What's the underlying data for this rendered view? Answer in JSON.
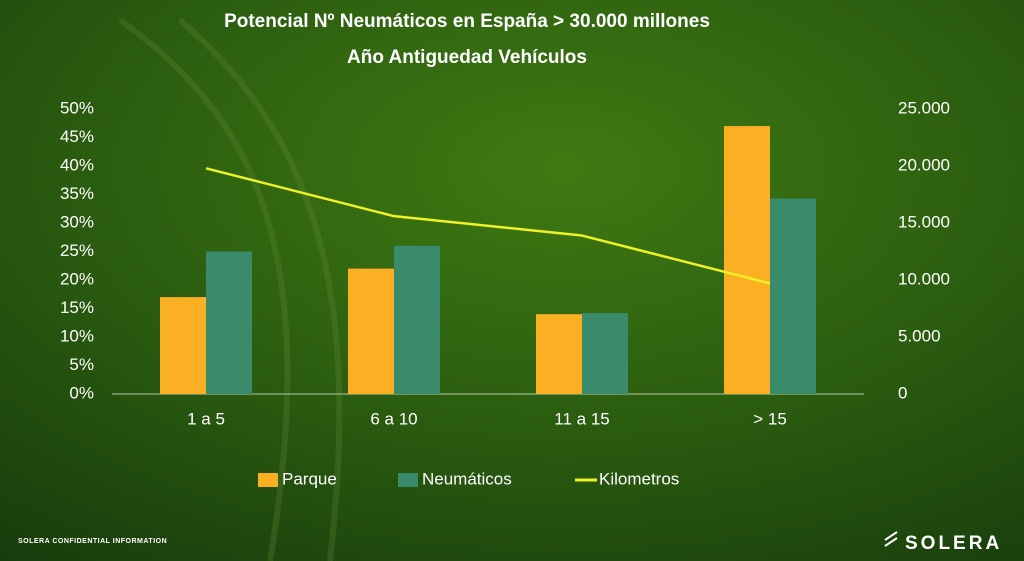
{
  "chart_data": {
    "type": "bar",
    "title": "Potencial   Nº Neumáticos en España  > 30.000 millones",
    "subtitle": "Año Antiguedad Vehículos",
    "categories": [
      "1 a 5",
      "6 a 10",
      "11 a 15",
      "> 15"
    ],
    "series": [
      {
        "name": "Parque",
        "color": "#fbb023",
        "values": [
          17,
          22,
          14,
          47
        ]
      },
      {
        "name": "Neumáticos",
        "color": "#3a8b6b",
        "values": [
          25,
          26,
          14.2,
          34.3
        ]
      },
      {
        "name": "Kilometros",
        "color": "#eef226",
        "axis": "y2",
        "values": [
          19800,
          15600,
          13900,
          9700
        ]
      }
    ],
    "ylim": [
      0,
      50
    ],
    "yticks": [
      {
        "value": 0,
        "label": "0%"
      },
      {
        "value": 5,
        "label": "5%"
      },
      {
        "value": 10,
        "label": "10%"
      },
      {
        "value": 15,
        "label": "15%"
      },
      {
        "value": 20,
        "label": "20%"
      },
      {
        "value": 25,
        "label": "25%"
      },
      {
        "value": 30,
        "label": "30%"
      },
      {
        "value": 35,
        "label": "35%"
      },
      {
        "value": 40,
        "label": "40%"
      },
      {
        "value": 45,
        "label": "45%"
      },
      {
        "value": 50,
        "label": "50%"
      }
    ],
    "y2lim": [
      0,
      25000
    ],
    "y2ticks": [
      0,
      {
        "value": 5000,
        "label": "5.000"
      },
      {
        "value": 10000,
        "label": "10.000"
      },
      {
        "value": 15000,
        "label": "15.000"
      },
      {
        "value": 20000,
        "label": "20.000"
      },
      {
        "value": 25000,
        "label": "25.000"
      }
    ],
    "grid": false,
    "legend": "bottom"
  },
  "footer": "SOLERA CONFIDENTIAL INFORMATION",
  "brand": "SOLERA"
}
